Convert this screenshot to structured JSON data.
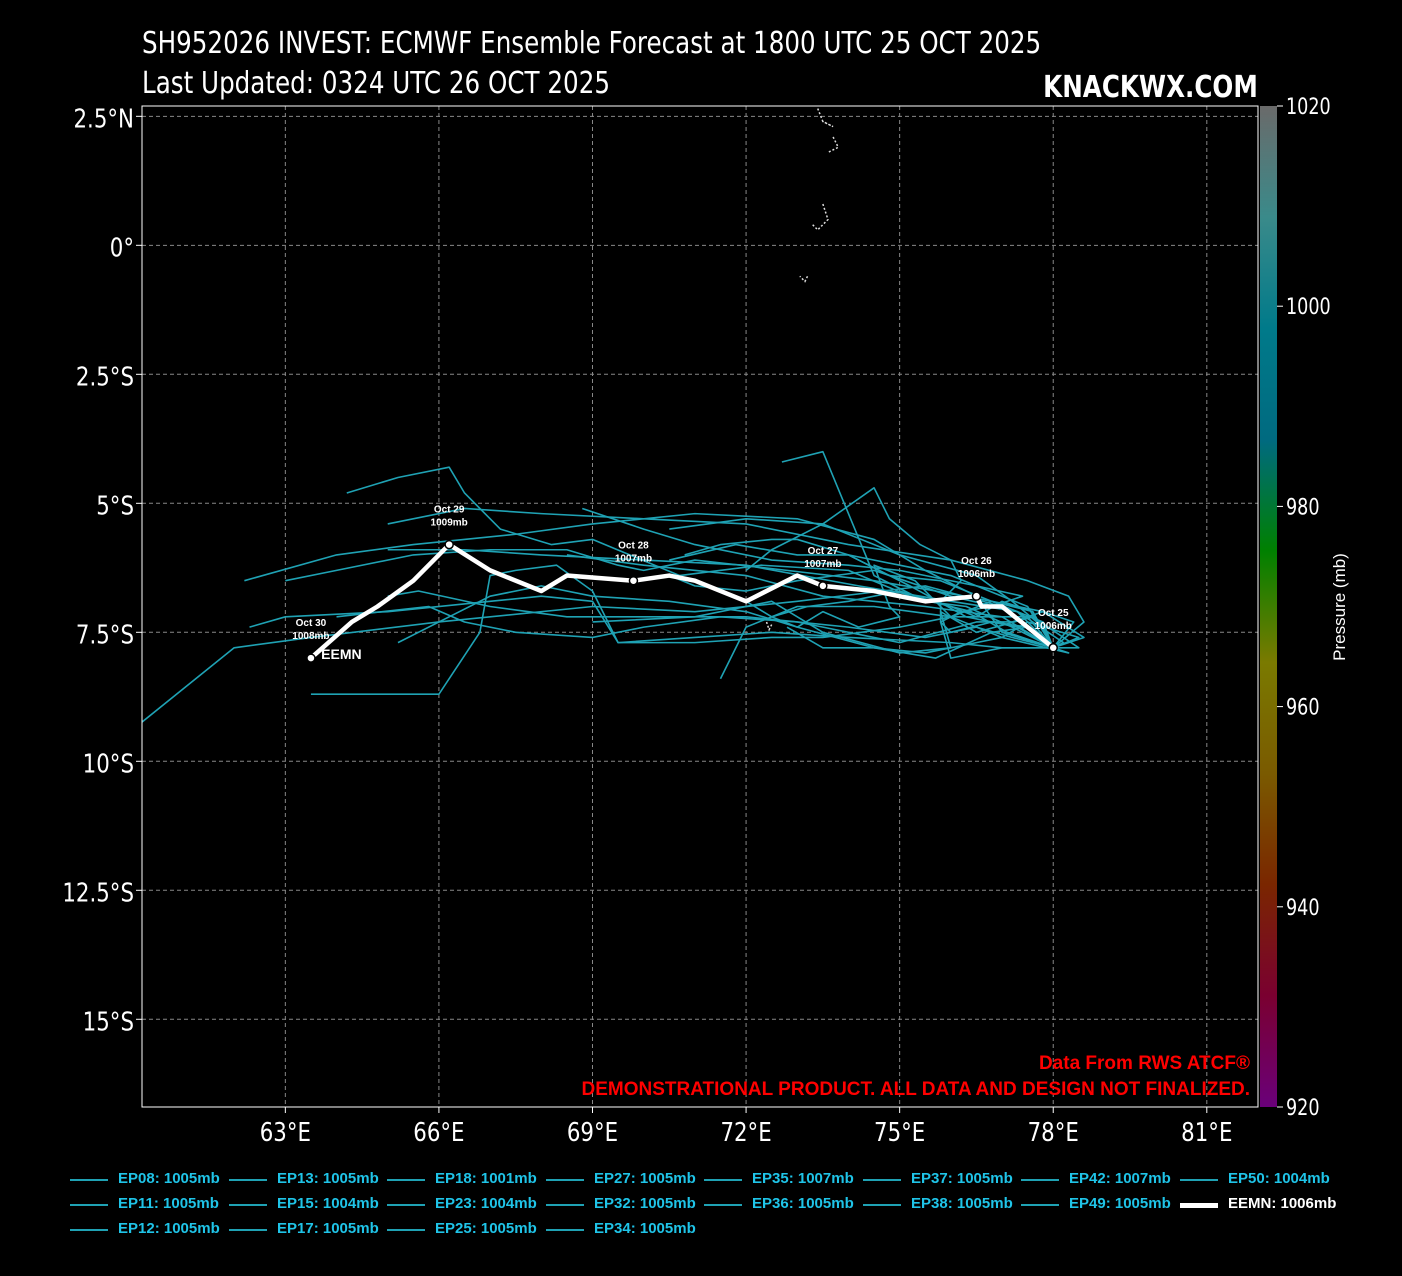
{
  "header": {
    "title_line1": "SH952026 INVEST: ECMWF Ensemble Forecast at 1800 UTC 25 OCT 2025",
    "title_line2": "Last Updated: 0324 UTC 26 OCT 2025",
    "brand": "KNACKWX.COM"
  },
  "map": {
    "lon_range": [
      60.2,
      82.0
    ],
    "lat_range": [
      -16.7,
      2.7
    ],
    "lat_ticks": [
      {
        "value": 2.5,
        "label": "2.5°N"
      },
      {
        "value": 0,
        "label": "0°"
      },
      {
        "value": -2.5,
        "label": "2.5°S"
      },
      {
        "value": -5,
        "label": "5°S"
      },
      {
        "value": -7.5,
        "label": "7.5°S"
      },
      {
        "value": -10,
        "label": "10°S"
      },
      {
        "value": -12.5,
        "label": "12.5°S"
      },
      {
        "value": -15,
        "label": "15°S"
      }
    ],
    "lon_ticks": [
      {
        "value": 63,
        "label": "63°E"
      },
      {
        "value": 66,
        "label": "66°E"
      },
      {
        "value": 69,
        "label": "69°E"
      },
      {
        "value": 72,
        "label": "72°E"
      },
      {
        "value": 75,
        "label": "75°E"
      },
      {
        "value": 78,
        "label": "78°E"
      },
      {
        "value": 81,
        "label": "81°E"
      }
    ],
    "grid": true,
    "background": "#000000",
    "grid_color": "#888888",
    "member_color": "#1fa2b4",
    "mean_color": "#ffffff",
    "islands": [
      [
        [
          73.4,
          2.65
        ],
        [
          73.5,
          2.4
        ],
        [
          73.7,
          2.3
        ],
        [
          73.5,
          2.4
        ]
      ],
      [
        [
          73.7,
          2.1
        ],
        [
          73.8,
          1.9
        ],
        [
          73.6,
          1.8
        ]
      ],
      [
        [
          73.5,
          0.8
        ],
        [
          73.6,
          0.5
        ],
        [
          73.4,
          0.3
        ],
        [
          73.3,
          0.4
        ]
      ],
      [
        [
          73.2,
          -0.6
        ],
        [
          73.15,
          -0.7
        ],
        [
          73.05,
          -0.6
        ]
      ],
      [
        [
          72.4,
          -7.3
        ],
        [
          72.45,
          -7.45
        ],
        [
          72.5,
          -7.35
        ]
      ]
    ],
    "ensemble_members": [
      [
        [
          78.0,
          -7.8
        ],
        [
          77.0,
          -7.0
        ],
        [
          75.5,
          -6.6
        ],
        [
          73.0,
          -6.9
        ],
        [
          71.0,
          -7.1
        ],
        [
          69.0,
          -7.0
        ],
        [
          66.0,
          -7.3
        ],
        [
          63.5,
          -7.6
        ],
        [
          62.0,
          -7.8
        ],
        [
          60.0,
          -9.4
        ]
      ],
      [
        [
          78.0,
          -7.8
        ],
        [
          77.3,
          -7.1
        ],
        [
          76.0,
          -6.9
        ],
        [
          74.2,
          -6.6
        ],
        [
          72.0,
          -6.2
        ],
        [
          70.0,
          -6.1
        ],
        [
          68.0,
          -6.0
        ],
        [
          66.5,
          -5.9
        ],
        [
          65.0,
          -5.9
        ]
      ],
      [
        [
          78.0,
          -7.8
        ],
        [
          77.0,
          -7.2
        ],
        [
          75.5,
          -7.0
        ],
        [
          73.5,
          -6.8
        ],
        [
          72.0,
          -6.4
        ],
        [
          70.0,
          -6.2
        ],
        [
          68.5,
          -6.0
        ]
      ],
      [
        [
          78.0,
          -7.8
        ],
        [
          77.5,
          -7.0
        ],
        [
          76.5,
          -6.6
        ],
        [
          75.0,
          -6.3
        ],
        [
          74.0,
          -6.2
        ],
        [
          72.5,
          -6.1
        ],
        [
          71.0,
          -5.8
        ],
        [
          70.0,
          -5.5
        ],
        [
          68.8,
          -5.1
        ]
      ],
      [
        [
          78.0,
          -7.8
        ],
        [
          78.6,
          -7.3
        ],
        [
          78.3,
          -6.8
        ],
        [
          77.5,
          -6.5
        ],
        [
          76.0,
          -6.1
        ],
        [
          74.0,
          -5.8
        ],
        [
          72.0,
          -5.4
        ],
        [
          70.0,
          -5.3
        ],
        [
          68.0,
          -5.2
        ],
        [
          66.5,
          -5.1
        ],
        [
          65.0,
          -5.4
        ]
      ],
      [
        [
          78.0,
          -7.8
        ],
        [
          77.0,
          -7.5
        ],
        [
          76.5,
          -6.8
        ],
        [
          75.5,
          -6.3
        ],
        [
          74.5,
          -5.7
        ],
        [
          73.0,
          -5.3
        ],
        [
          71.0,
          -5.2
        ],
        [
          69.0,
          -5.4
        ],
        [
          67.5,
          -5.6
        ],
        [
          65.5,
          -5.8
        ],
        [
          64.0,
          -6.0
        ],
        [
          62.2,
          -6.5
        ]
      ],
      [
        [
          78.0,
          -7.8
        ],
        [
          77.2,
          -7.6
        ],
        [
          76.5,
          -7.4
        ],
        [
          75.5,
          -7.6
        ],
        [
          74.0,
          -7.4
        ],
        [
          73.0,
          -7.3
        ],
        [
          72.0,
          -7.2
        ],
        [
          70.0,
          -7.2
        ],
        [
          68.5,
          -7.2
        ],
        [
          67.0,
          -7.0
        ],
        [
          65.6,
          -6.7
        ],
        [
          65.0,
          -6.8
        ]
      ],
      [
        [
          78.0,
          -7.8
        ],
        [
          77.5,
          -7.2
        ],
        [
          76.0,
          -7.2
        ],
        [
          74.5,
          -7.0
        ],
        [
          73.0,
          -7.0
        ],
        [
          72.0,
          -7.4
        ],
        [
          71.5,
          -8.4
        ]
      ],
      [
        [
          78.0,
          -7.8
        ],
        [
          78.3,
          -7.9
        ],
        [
          77.0,
          -7.6
        ],
        [
          76.0,
          -7.2
        ],
        [
          75.0,
          -7.4
        ],
        [
          73.5,
          -7.6
        ],
        [
          72.5,
          -7.6
        ],
        [
          71.0,
          -7.7
        ],
        [
          69.5,
          -7.7
        ],
        [
          69.0,
          -6.9
        ],
        [
          68.0,
          -6.8
        ],
        [
          67.0,
          -6.9
        ],
        [
          65.0,
          -7.1
        ],
        [
          63.0,
          -7.2
        ],
        [
          62.3,
          -7.4
        ]
      ],
      [
        [
          78.0,
          -7.8
        ],
        [
          77.5,
          -7.4
        ],
        [
          76.8,
          -7.5
        ],
        [
          75.7,
          -8.0
        ],
        [
          74.5,
          -7.8
        ],
        [
          73.0,
          -7.4
        ],
        [
          72.0,
          -7.1
        ],
        [
          70.5,
          -6.9
        ],
        [
          69.0,
          -6.8
        ],
        [
          68.0,
          -6.6
        ],
        [
          67.0,
          -6.8
        ],
        [
          65.2,
          -7.7
        ]
      ],
      [
        [
          78.0,
          -7.8
        ],
        [
          77.0,
          -7.8
        ],
        [
          76.0,
          -7.7
        ],
        [
          74.0,
          -7.6
        ],
        [
          72.5,
          -7.5
        ],
        [
          71.0,
          -7.6
        ],
        [
          69.5,
          -7.7
        ],
        [
          69.0,
          -6.7
        ],
        [
          68.3,
          -6.2
        ],
        [
          67.5,
          -6.3
        ],
        [
          67.0,
          -6.4
        ],
        [
          66.8,
          -7.5
        ],
        [
          66.0,
          -8.7
        ],
        [
          63.5,
          -8.7
        ]
      ],
      [
        [
          78.0,
          -7.8
        ],
        [
          78.2,
          -7.7
        ],
        [
          77.3,
          -7.1
        ],
        [
          76.0,
          -6.8
        ],
        [
          74.5,
          -6.3
        ],
        [
          73.0,
          -6.5
        ],
        [
          72.0,
          -6.7
        ],
        [
          71.0,
          -6.6
        ],
        [
          70.5,
          -6.4
        ]
      ],
      [
        [
          78.0,
          -7.8
        ],
        [
          77.8,
          -7.4
        ],
        [
          77.2,
          -6.9
        ],
        [
          76.5,
          -6.4
        ],
        [
          75.0,
          -6.0
        ],
        [
          73.5,
          -5.4
        ],
        [
          72.0,
          -5.3
        ],
        [
          70.5,
          -5.5
        ]
      ],
      [
        [
          78.0,
          -7.8
        ],
        [
          77.0,
          -7.8
        ],
        [
          76.0,
          -8.0
        ],
        [
          75.8,
          -7.3
        ],
        [
          75.8,
          -6.9
        ],
        [
          76.2,
          -6.5
        ],
        [
          76.0,
          -6.1
        ],
        [
          75.4,
          -5.8
        ],
        [
          74.8,
          -5.3
        ],
        [
          74.5,
          -4.7
        ],
        [
          73.5,
          -5.4
        ],
        [
          72.5,
          -5.9
        ],
        [
          72.0,
          -6.3
        ]
      ],
      [
        [
          78.0,
          -7.8
        ],
        [
          78.6,
          -7.6
        ],
        [
          77.8,
          -7.1
        ],
        [
          77.2,
          -7.3
        ],
        [
          76.5,
          -7.3
        ],
        [
          75.0,
          -7.7
        ],
        [
          73.5,
          -7.4
        ],
        [
          73.0,
          -7.3
        ],
        [
          71.5,
          -7.2
        ],
        [
          70.0,
          -7.4
        ],
        [
          69.0,
          -7.6
        ],
        [
          67.5,
          -7.5
        ],
        [
          66.5,
          -7.3
        ],
        [
          65.8,
          -7.0
        ],
        [
          64.0,
          -7.2
        ]
      ],
      [
        [
          78.0,
          -7.8
        ],
        [
          77.6,
          -7.1
        ],
        [
          76.8,
          -6.9
        ],
        [
          76.0,
          -7.2
        ],
        [
          75.3,
          -6.5
        ],
        [
          74.5,
          -6.2
        ],
        [
          74.8,
          -7.0
        ],
        [
          75.0,
          -7.2
        ],
        [
          74.2,
          -7.4
        ],
        [
          73.5,
          -7.1
        ],
        [
          73.0,
          -7.4
        ],
        [
          72.5,
          -7.2
        ],
        [
          72.0,
          -6.9
        ]
      ],
      [
        [
          78.0,
          -7.8
        ],
        [
          78.5,
          -7.8
        ],
        [
          77.6,
          -7.2
        ],
        [
          76.5,
          -7.5
        ],
        [
          75.8,
          -7.1
        ],
        [
          76.0,
          -7.8
        ],
        [
          75.0,
          -7.9
        ],
        [
          73.5,
          -7.5
        ],
        [
          72.5,
          -6.9
        ],
        [
          71.0,
          -7.2
        ],
        [
          69.0,
          -7.3
        ]
      ],
      [
        [
          78.0,
          -7.8
        ],
        [
          77.3,
          -7.4
        ],
        [
          76.3,
          -7.2
        ],
        [
          75.2,
          -6.6
        ],
        [
          74.0,
          -6.0
        ],
        [
          73.0,
          -6.0
        ],
        [
          71.8,
          -5.8
        ],
        [
          70.5,
          -6.1
        ]
      ],
      [
        [
          78.0,
          -7.8
        ],
        [
          77.8,
          -7.3
        ],
        [
          76.8,
          -6.9
        ],
        [
          75.8,
          -6.5
        ],
        [
          74.8,
          -6.4
        ],
        [
          74.0,
          -6.0
        ],
        [
          73.0,
          -5.7
        ],
        [
          72.5,
          -5.7
        ],
        [
          71.5,
          -5.8
        ],
        [
          70.8,
          -6.0
        ]
      ],
      [
        [
          78.0,
          -7.8
        ],
        [
          77.5,
          -7.4
        ],
        [
          76.8,
          -7.3
        ],
        [
          76.0,
          -7.5
        ],
        [
          75.8,
          -7.3
        ],
        [
          76.2,
          -7.1
        ],
        [
          76.8,
          -7.0
        ],
        [
          77.4,
          -6.8
        ],
        [
          76.5,
          -6.6
        ],
        [
          76.0,
          -6.4
        ],
        [
          75.0,
          -6.2
        ],
        [
          74.0,
          -6.0
        ]
      ],
      [
        [
          78.0,
          -7.8
        ],
        [
          77.2,
          -7.4
        ],
        [
          76.3,
          -7.0
        ],
        [
          75.5,
          -6.9
        ],
        [
          74.5,
          -6.4
        ],
        [
          73.5,
          -4.0
        ],
        [
          72.7,
          -4.2
        ]
      ],
      [
        [
          78.0,
          -7.8
        ],
        [
          78.4,
          -7.3
        ],
        [
          77.8,
          -7.1
        ],
        [
          76.8,
          -6.9
        ],
        [
          75.7,
          -6.7
        ],
        [
          74.5,
          -6.5
        ],
        [
          72.8,
          -6.3
        ],
        [
          71.0,
          -6.1
        ],
        [
          70.0,
          -6.3
        ],
        [
          69.5,
          -6.2
        ],
        [
          68.5,
          -5.9
        ],
        [
          67.0,
          -5.9
        ],
        [
          65.5,
          -6.0
        ],
        [
          64.0,
          -6.3
        ],
        [
          63.0,
          -6.5
        ]
      ],
      [
        [
          78.0,
          -7.8
        ],
        [
          77.6,
          -7.1
        ],
        [
          77.0,
          -6.9
        ],
        [
          76.5,
          -7.2
        ],
        [
          76.0,
          -7.0
        ],
        [
          75.0,
          -6.7
        ],
        [
          74.0,
          -6.9
        ],
        [
          73.2,
          -7.0
        ],
        [
          72.5,
          -7.2
        ]
      ],
      [
        [
          78.0,
          -7.8
        ],
        [
          78.5,
          -7.6
        ],
        [
          77.5,
          -7.3
        ],
        [
          77.0,
          -7.6
        ],
        [
          76.5,
          -7.7
        ],
        [
          75.5,
          -7.9
        ],
        [
          74.5,
          -7.8
        ],
        [
          73.5,
          -7.8
        ],
        [
          72.8,
          -7.4
        ]
      ],
      [
        [
          78.0,
          -7.8
        ],
        [
          77.1,
          -7.5
        ],
        [
          76.4,
          -7.1
        ],
        [
          75.2,
          -6.8
        ],
        [
          74.0,
          -6.3
        ],
        [
          72.3,
          -6.2
        ],
        [
          70.7,
          -6.4
        ],
        [
          69.0,
          -5.7
        ],
        [
          68.2,
          -5.8
        ],
        [
          67.2,
          -5.5
        ],
        [
          66.5,
          -4.8
        ],
        [
          66.2,
          -4.3
        ],
        [
          65.2,
          -4.5
        ],
        [
          64.2,
          -4.8
        ]
      ]
    ],
    "mean_track": [
      [
        78.0,
        -7.8
      ],
      [
        77.5,
        -7.4
      ],
      [
        77.0,
        -7.0
      ],
      [
        76.6,
        -7.0
      ],
      [
        76.5,
        -6.8
      ],
      [
        75.5,
        -6.9
      ],
      [
        74.5,
        -6.7
      ],
      [
        73.5,
        -6.6
      ],
      [
        73.0,
        -6.4
      ],
      [
        72.0,
        -6.9
      ],
      [
        71.0,
        -6.5
      ],
      [
        70.5,
        -6.4
      ],
      [
        69.8,
        -6.5
      ],
      [
        68.5,
        -6.4
      ],
      [
        68.0,
        -6.7
      ],
      [
        67.0,
        -6.3
      ],
      [
        66.2,
        -5.8
      ],
      [
        65.5,
        -6.5
      ],
      [
        64.8,
        -7.0
      ],
      [
        64.3,
        -7.3
      ],
      [
        63.5,
        -8.0
      ]
    ],
    "mean_label": "EEMN",
    "mean_label_pos": [
      63.7,
      -7.9
    ],
    "mean_points": [
      {
        "lon": 78.0,
        "lat": -7.8,
        "date": "Oct 25",
        "pressure": "1006mb"
      },
      {
        "lon": 76.5,
        "lat": -6.8,
        "date": "Oct 26",
        "pressure": "1006mb"
      },
      {
        "lon": 73.5,
        "lat": -6.6,
        "date": "Oct 27",
        "pressure": "1007mb"
      },
      {
        "lon": 69.8,
        "lat": -6.5,
        "date": "Oct 28",
        "pressure": "1007mb"
      },
      {
        "lon": 66.2,
        "lat": -5.8,
        "date": "Oct 29",
        "pressure": "1009mb"
      },
      {
        "lon": 63.5,
        "lat": -8.0,
        "date": "Oct 30",
        "pressure": "1008mb"
      }
    ]
  },
  "colorbar": {
    "label": "Pressure (mb)",
    "range": [
      920,
      1020
    ],
    "ticks": [
      "1020",
      "1000",
      "980",
      "960",
      "940",
      "920"
    ],
    "tick_values": [
      1020,
      1000,
      980,
      960,
      940,
      920
    ],
    "stops": [
      "#6a007a",
      "#7a0030",
      "#7a2600",
      "#7a5a00",
      "#7a7a00",
      "#008000",
      "#006a80",
      "#007a8a",
      "#3a8a8a",
      "#6a6a6a"
    ]
  },
  "notice": {
    "line1": "Data From RWS ATCF®",
    "line2": "DEMONSTRATIONAL PRODUCT. ALL DATA AND DESIGN NOT FINALIZED.",
    "color": "#ff0000"
  },
  "legend": {
    "items": [
      "EP08: 1005mb",
      "EP13: 1005mb",
      "EP18: 1001mb",
      "EP27: 1005mb",
      "EP35: 1007mb",
      "EP37: 1005mb",
      "EP42: 1007mb",
      "EP50: 1004mb",
      "EP11: 1005mb",
      "EP15: 1004mb",
      "EP23: 1004mb",
      "EP32: 1005mb",
      "EP36: 1005mb",
      "EP38: 1005mb",
      "EP49: 1005mb",
      "EEMN: 1006mb",
      "EP12: 1005mb",
      "EP17: 1005mb",
      "EP25: 1005mb",
      "EP34: 1005mb"
    ]
  }
}
